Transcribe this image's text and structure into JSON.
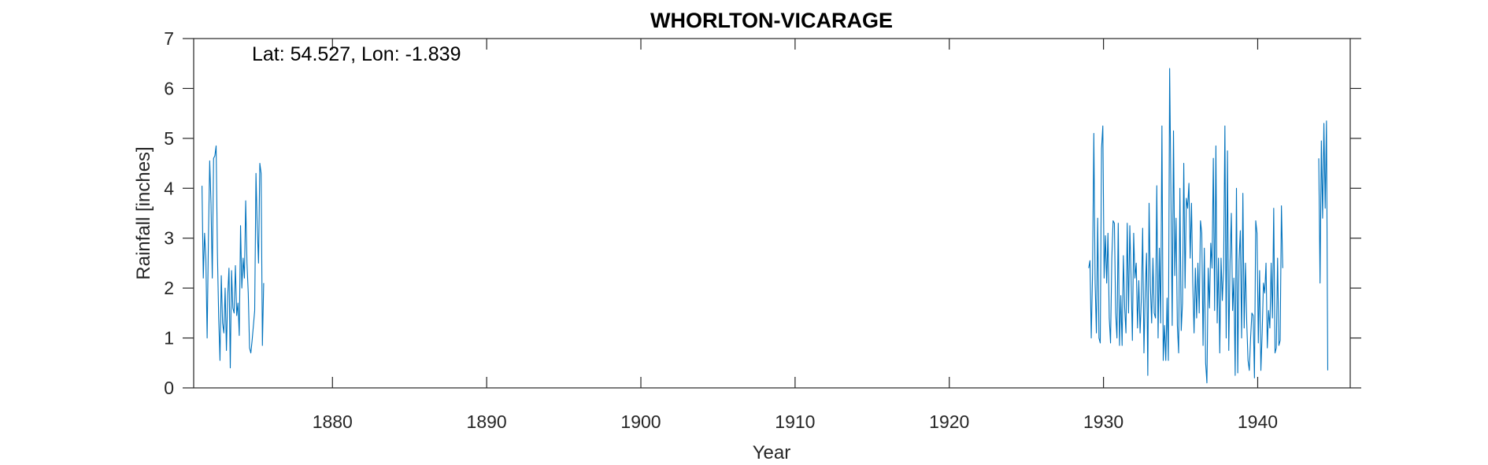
{
  "chart_data": {
    "type": "line",
    "title": "WHORLTON-VICARAGE",
    "xlabel": "Year",
    "ylabel": "Rainfall [inches]",
    "annotation": "Lat: 54.527, Lon: -1.839",
    "xlim": [
      1871,
      1946
    ],
    "ylim": [
      0,
      7
    ],
    "xticks": [
      1880,
      1890,
      1900,
      1910,
      1920,
      1930,
      1940
    ],
    "yticks": [
      0,
      1,
      2,
      3,
      4,
      5,
      6,
      7
    ],
    "grid": false,
    "line_color": "#0072BD",
    "series": [
      {
        "segments": [
          {
            "start": 1871.54,
            "step": 0.08333,
            "values": [
              4.05,
              2.2,
              3.1,
              2.6,
              1.0,
              3.0,
              4.55,
              3.7,
              2.2,
              4.6,
              4.65,
              4.85,
              2.7,
              1.4,
              0.55,
              2.25,
              1.3,
              1.1,
              2.0,
              0.75,
              1.85,
              2.4,
              0.4,
              2.35,
              1.6,
              1.5,
              2.45,
              1.45,
              1.7,
              1.05,
              3.25,
              2.0,
              2.6,
              2.2,
              3.75,
              2.5,
              1.9,
              0.8,
              0.7,
              0.95,
              1.25,
              1.55,
              4.3,
              3.2,
              2.5,
              4.5,
              4.3,
              0.85,
              2.1
            ]
          },
          {
            "start": 1929.04,
            "step": 0.08333,
            "values": [
              2.4,
              2.55,
              1.0,
              2.3,
              5.1,
              2.1,
              1.1,
              3.4,
              1.0,
              0.9,
              4.8,
              5.25,
              2.2,
              3.05,
              2.1,
              3.1,
              1.4,
              0.9,
              2.6,
              3.35,
              3.3,
              1.5,
              1.0,
              3.3,
              0.85,
              1.85,
              0.85,
              2.65,
              1.6,
              1.1,
              3.3,
              1.5,
              3.25,
              2.2,
              0.95,
              3.1,
              2.2,
              2.5,
              1.2,
              2.15,
              1.1,
              1.8,
              3.2,
              0.7,
              1.9,
              2.7,
              0.25,
              3.7,
              2.05,
              1.3,
              2.6,
              1.5,
              1.4,
              4.05,
              1.0,
              2.8,
              1.3,
              5.25,
              0.55,
              1.25,
              0.55,
              1.8,
              0.55,
              6.4,
              3.9,
              1.25,
              5.15,
              2.25,
              3.4,
              1.25,
              0.7,
              4.0,
              1.15,
              1.7,
              4.5,
              2.0,
              3.8,
              3.6,
              4.1,
              2.6,
              3.7,
              2.1,
              1.1,
              2.4,
              1.4,
              2.5,
              1.5,
              3.35,
              3.1,
              0.85,
              2.8,
              0.5,
              0.1,
              2.4,
              1.6,
              2.9,
              2.4,
              4.6,
              1.55,
              4.85,
              1.3,
              2.6,
              0.7,
              2.6,
              1.75,
              2.4,
              5.25,
              1.0,
              4.75,
              0.75,
              2.5,
              3.5,
              1.55,
              2.2,
              0.25,
              4.0,
              0.3,
              2.55,
              3.15,
              1.0,
              3.9,
              1.2,
              2.5,
              1.3,
              0.55,
              0.35,
              1.0,
              1.5,
              1.45,
              0.2,
              3.35,
              3.1,
              0.9,
              2.35,
              0.35,
              1.1,
              2.1,
              1.9,
              2.5,
              0.8,
              1.55,
              1.2,
              2.5,
              1.4,
              3.6,
              0.7,
              0.8,
              2.6,
              0.85,
              0.95,
              3.65,
              2.4
            ]
          },
          {
            "start": 1943.96,
            "step": 0.08333,
            "values": [
              4.6,
              2.1,
              4.95,
              3.4,
              5.3,
              3.6,
              5.35,
              0.35
            ]
          }
        ]
      }
    ]
  }
}
